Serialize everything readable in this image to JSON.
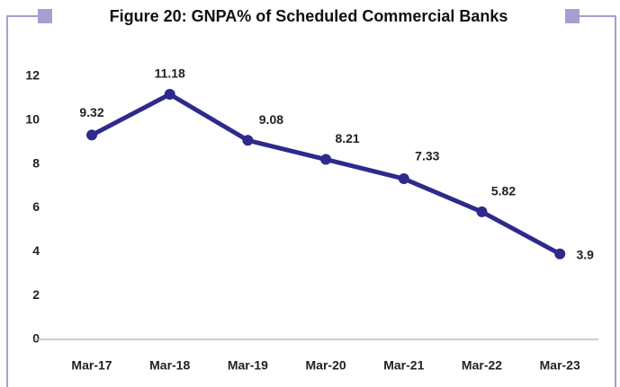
{
  "chart_data": {
    "type": "line",
    "title": "Figure 20: GNPA% of Scheduled Commercial Banks",
    "categories": [
      "Mar-17",
      "Mar-18",
      "Mar-19",
      "Mar-20",
      "Mar-21",
      "Mar-22",
      "Mar-23"
    ],
    "series": [
      {
        "name": "GNPA%",
        "color": "#2e2a8c",
        "values": [
          9.32,
          11.18,
          9.08,
          8.21,
          7.33,
          5.82,
          3.9
        ]
      }
    ],
    "ylim": [
      0,
      12
    ],
    "yticks": [
      0,
      2,
      4,
      6,
      8,
      10,
      12
    ],
    "grid": false
  }
}
